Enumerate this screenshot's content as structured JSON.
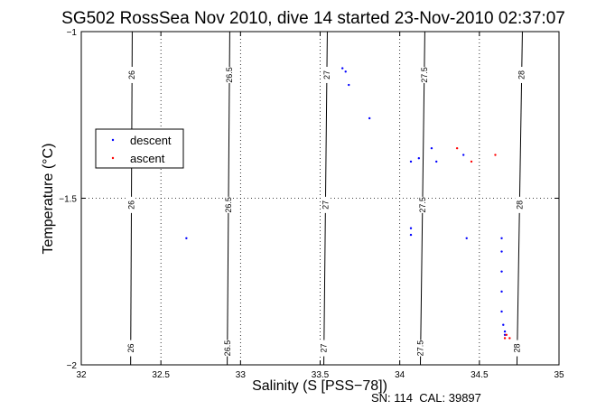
{
  "chart_data": {
    "type": "scatter",
    "title": "SG502 RossSea Nov 2010, dive 14 started 23-Nov-2010 02:37:07",
    "xlabel": "Salinity (S [PSS−78])",
    "ylabel": "Temperature (°C)",
    "footer": "SN: 114  CAL: 39897",
    "xlim": [
      32,
      35
    ],
    "ylim": [
      -2,
      -1
    ],
    "xticks": [
      "32",
      "32.5",
      "33",
      "33.5",
      "34",
      "34.5",
      "35"
    ],
    "yticks": [
      "-1",
      "-1.5",
      "-2"
    ],
    "grid": true,
    "legend_position": "upper-left",
    "density_contours": [
      {
        "label": "26",
        "color": "#000000"
      },
      {
        "label": "26.5",
        "color": "#000000"
      },
      {
        "label": "27",
        "color": "#000000"
      },
      {
        "label": "27.5",
        "color": "#000000"
      },
      {
        "label": "28",
        "color": "#000000"
      }
    ],
    "series": [
      {
        "name": "descent",
        "color": "#0000ff",
        "points": [
          [
            33.64,
            -1.11
          ],
          [
            33.66,
            -1.12
          ],
          [
            33.68,
            -1.16
          ],
          [
            33.81,
            -1.26
          ],
          [
            34.07,
            -1.39
          ],
          [
            34.12,
            -1.38
          ],
          [
            34.2,
            -1.35
          ],
          [
            34.23,
            -1.39
          ],
          [
            34.4,
            -1.37
          ],
          [
            34.07,
            -1.59
          ],
          [
            34.07,
            -1.61
          ],
          [
            34.42,
            -1.62
          ],
          [
            32.66,
            -1.62
          ],
          [
            34.64,
            -1.62
          ],
          [
            34.64,
            -1.66
          ],
          [
            34.64,
            -1.72
          ],
          [
            34.64,
            -1.78
          ],
          [
            34.64,
            -1.84
          ],
          [
            34.65,
            -1.88
          ],
          [
            34.66,
            -1.9
          ],
          [
            34.66,
            -1.91
          ]
        ]
      },
      {
        "name": "ascent",
        "color": "#ff0000",
        "points": [
          [
            34.6,
            -1.37
          ],
          [
            34.45,
            -1.39
          ],
          [
            34.36,
            -1.35
          ],
          [
            34.67,
            -1.91
          ],
          [
            34.69,
            -1.92
          ],
          [
            34.66,
            -1.92
          ]
        ]
      }
    ]
  }
}
